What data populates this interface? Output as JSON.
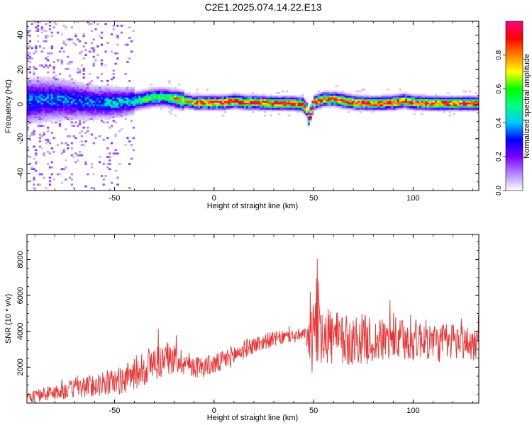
{
  "title": "C2E1.2025.074.14.22.E13",
  "chart_data": [
    {
      "type": "heatmap",
      "xlabel": "Height of straight line (km)",
      "ylabel": "Frequency (Hz)",
      "xlim": [
        -94,
        133
      ],
      "ylim": [
        -50,
        48
      ],
      "x_ticks": [
        -50,
        0,
        50,
        100
      ],
      "x_tick_labels": [
        "-50",
        "0",
        "50",
        "100"
      ],
      "y_ticks": [
        -40,
        -20,
        0,
        20,
        40
      ],
      "y_tick_labels": [
        "-40",
        "-20",
        "0",
        "20",
        "40"
      ],
      "grid": false,
      "colorbar": {
        "label": "Normalized spectral amplitude",
        "range": [
          0,
          1
        ],
        "ticks": [
          0.0,
          0.2,
          0.4,
          0.6,
          0.8
        ],
        "tick_labels": [
          "0.0",
          "0.2",
          "0.4",
          "0.6",
          "0.8"
        ],
        "colors": [
          "#ffffff",
          "#b088ff",
          "#7a00ff",
          "#0000ff",
          "#00c8ff",
          "#00ff80",
          "#00ff00",
          "#ffff00",
          "#ff8000",
          "#ff0000",
          "#ff0080"
        ]
      },
      "peak_frequency_track": {
        "x": [
          -94,
          -80,
          -70,
          -60,
          -50,
          -40,
          -35,
          -30,
          -25,
          -20,
          -15,
          -10,
          -5,
          0,
          5,
          10,
          15,
          20,
          30,
          40,
          44,
          46,
          47,
          48,
          50,
          52,
          55,
          60,
          65,
          70,
          80,
          90,
          95,
          100,
          110,
          120,
          133
        ],
        "y": [
          2,
          3,
          2,
          1,
          1,
          2,
          3,
          4,
          4,
          3,
          2,
          1,
          1,
          1,
          1,
          2,
          1,
          1,
          0.5,
          0.5,
          0,
          -3,
          -8,
          -5,
          1,
          2,
          3,
          3,
          2,
          1,
          0.5,
          1,
          2,
          1,
          0.5,
          0.5,
          0.5
        ]
      }
    },
    {
      "type": "line",
      "xlabel": "Height of straight line (km)",
      "ylabel": "SNR (10 * v/v)",
      "xlim": [
        -94,
        133
      ],
      "ylim": [
        0,
        9400
      ],
      "x_ticks": [
        -50,
        0,
        50,
        100
      ],
      "x_tick_labels": [
        "-50",
        "0",
        "50",
        "100"
      ],
      "y_ticks": [
        2000,
        4000,
        6000,
        8000
      ],
      "y_tick_labels": [
        "2000",
        "4000",
        "6000",
        "8000"
      ],
      "grid": false,
      "series": [
        {
          "color": "#ee3333",
          "x": [
            -94,
            -85,
            -75,
            -65,
            -55,
            -45,
            -38,
            -33,
            -28,
            -23,
            -18,
            -13,
            -8,
            -3,
            2,
            7,
            12,
            17,
            22,
            27,
            32,
            37,
            42,
            46,
            48,
            49,
            50,
            51,
            52,
            55,
            60,
            65,
            70,
            75,
            80,
            85,
            90,
            95,
            100,
            105,
            110,
            115,
            120,
            125,
            130,
            133
          ],
          "y": [
            300,
            500,
            700,
            900,
            1100,
            1300,
            1800,
            2100,
            2300,
            2500,
            2400,
            2200,
            2000,
            2100,
            2200,
            2500,
            2800,
            3100,
            3300,
            3500,
            3600,
            3700,
            3750,
            3800,
            3500,
            3200,
            4500,
            4800,
            4600,
            4000,
            3600,
            3400,
            3500,
            3600,
            3400,
            3500,
            3600,
            3400,
            3500,
            3600,
            3400,
            3300,
            3500,
            3400,
            3300,
            3400
          ],
          "spread": [
            300,
            400,
            500,
            600,
            700,
            800,
            1000,
            1100,
            1000,
            900,
            800,
            700,
            600,
            600,
            600,
            600,
            600,
            500,
            500,
            450,
            400,
            400,
            400,
            400,
            1200,
            2000,
            2500,
            2600,
            2400,
            2000,
            1600,
            1500,
            1400,
            1400,
            1300,
            1200,
            1300,
            1200,
            1200,
            1100,
            1100,
            1100,
            1100,
            1000,
            1000,
            1000
          ]
        }
      ]
    }
  ]
}
